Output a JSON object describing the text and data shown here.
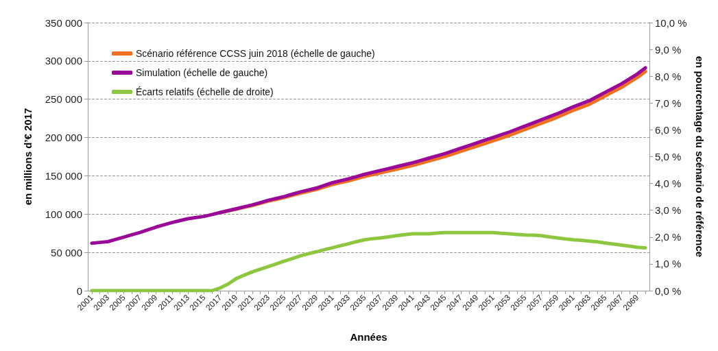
{
  "chart_data": {
    "type": "line",
    "xlabel": "Années",
    "ylabel": "en millions d’€ 2017",
    "y2label": "en pourcentage du scénario de référence",
    "categories": [
      "2001",
      null,
      "2003",
      null,
      "2005",
      null,
      "2007",
      null,
      "2009",
      null,
      "2011",
      null,
      "2013",
      null,
      "2015",
      null,
      "2017",
      null,
      "2019",
      null,
      "2021",
      null,
      "2023",
      null,
      "2025",
      null,
      "2027",
      null,
      "2029",
      null,
      "2031",
      null,
      "2033",
      null,
      "2035",
      null,
      "2037",
      null,
      "2039",
      null,
      "2041",
      null,
      "2043",
      null,
      "2045",
      null,
      "2047",
      null,
      "2049",
      null,
      "2051",
      null,
      "2053",
      null,
      "2055",
      null,
      "2057",
      null,
      "2059",
      null,
      "2061",
      null,
      "2063",
      null,
      "2065",
      null,
      "2067",
      null,
      "2069",
      null
    ],
    "series": [
      {
        "name": "Scénario référence CCSS juin 2018 (échelle de gauche)",
        "color": "#f07020",
        "values": [
          null,
          null,
          null,
          null,
          null,
          null,
          null,
          null,
          null,
          null,
          null,
          null,
          null,
          null,
          null,
          null,
          101900,
          104200,
          106500,
          108900,
          111200,
          114100,
          116900,
          119300,
          121700,
          124500,
          127300,
          129700,
          132100,
          135400,
          138700,
          141100,
          143400,
          146300,
          149100,
          151500,
          153900,
          156300,
          158700,
          161100,
          163500,
          166400,
          169300,
          172200,
          175100,
          178500,
          182000,
          185400,
          188800,
          192200,
          195700,
          199100,
          202600,
          206600,
          210500,
          214500,
          218400,
          222400,
          226400,
          231000,
          235400,
          239400,
          243400,
          248900,
          254400,
          259900,
          265400,
          271900,
          278400,
          286300
        ]
      },
      {
        "name": "Simulation (échelle de gauche)",
        "color": "#9a0a98",
        "values": [
          62000,
          63000,
          64000,
          67000,
          70000,
          73000,
          76000,
          79500,
          83000,
          86000,
          89000,
          91500,
          94000,
          95500,
          97000,
          99500,
          102000,
          104500,
          107000,
          109500,
          112000,
          115000,
          118000,
          120500,
          123000,
          126000,
          129000,
          131500,
          134000,
          137500,
          141000,
          143500,
          146000,
          149000,
          152000,
          154500,
          157000,
          159500,
          162000,
          164500,
          167000,
          170000,
          173000,
          176000,
          179000,
          182500,
          186000,
          189500,
          193000,
          196500,
          200000,
          203500,
          207000,
          211000,
          215000,
          219000,
          223000,
          227000,
          231000,
          235500,
          240000,
          244000,
          248000,
          253500,
          259000,
          264500,
          270000,
          276500,
          283000,
          291000
        ]
      },
      {
        "name": "Écarts relatifs (échelle de droite)",
        "color": "#8dc63f",
        "axis": "y2",
        "values": [
          0,
          0,
          0,
          0,
          0,
          0,
          0,
          0,
          0,
          0,
          0,
          0,
          0,
          0,
          0,
          0,
          0.1,
          0.25,
          0.45,
          0.58,
          0.7,
          0.8,
          0.9,
          1.0,
          1.1,
          1.2,
          1.3,
          1.38,
          1.45,
          1.53,
          1.6,
          1.68,
          1.75,
          1.83,
          1.9,
          1.94,
          1.97,
          2.01,
          2.05,
          2.09,
          2.12,
          2.12,
          2.12,
          2.15,
          2.17,
          2.17,
          2.17,
          2.17,
          2.17,
          2.17,
          2.17,
          2.14,
          2.12,
          2.1,
          2.08,
          2.07,
          2.05,
          2.01,
          1.97,
          1.93,
          1.9,
          1.88,
          1.85,
          1.82,
          1.78,
          1.74,
          1.7,
          1.66,
          1.62,
          1.6
        ]
      }
    ],
    "ylim": [
      0,
      350000
    ],
    "yticks": [
      {
        "value": 0,
        "label": "0"
      },
      {
        "value": 50000,
        "label": "50 000"
      },
      {
        "value": 100000,
        "label": "100 000"
      },
      {
        "value": 150000,
        "label": "150 000"
      },
      {
        "value": 200000,
        "label": "200 000"
      },
      {
        "value": 250000,
        "label": "250 000"
      },
      {
        "value": 300000,
        "label": "300 000"
      },
      {
        "value": 350000,
        "label": "350 000"
      }
    ],
    "y2lim": [
      0,
      10
    ],
    "y2ticks": [
      {
        "value": 0,
        "label": "0,0 %"
      },
      {
        "value": 1,
        "label": "1,0 %"
      },
      {
        "value": 2,
        "label": "2,0 %"
      },
      {
        "value": 3,
        "label": "3,0 %"
      },
      {
        "value": 4,
        "label": "4,0 %"
      },
      {
        "value": 5,
        "label": "5,0 %"
      },
      {
        "value": 6,
        "label": "6,0 %"
      },
      {
        "value": 7,
        "label": "7,0 %"
      },
      {
        "value": 8,
        "label": "8,0 %"
      },
      {
        "value": 9,
        "label": "9,0 %"
      },
      {
        "value": 10,
        "label": "10,0 %"
      }
    ],
    "grid": "y",
    "legend": "top left",
    "marker": "none",
    "line_style": "solid"
  }
}
